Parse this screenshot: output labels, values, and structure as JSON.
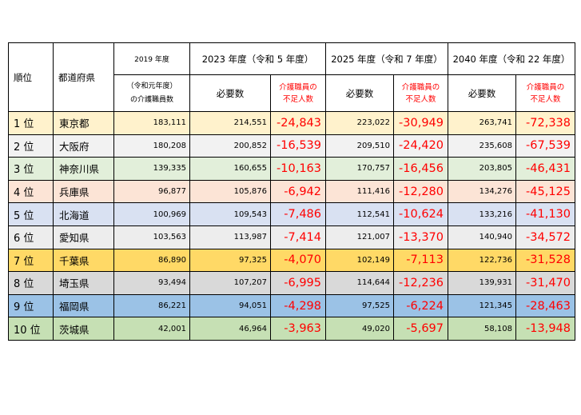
{
  "header": {
    "rank": "順位",
    "prefecture": "都道府県",
    "year2019": "2019 年度",
    "year2019_sub1": "（令和元年度）",
    "year2019_sub2": "の介護職員数",
    "year2023": "2023 年度（令和 5 年度）",
    "year2025": "2025 年度（令和 7 年度）",
    "year2040": "2040 年度（令和 22 年度）",
    "required": "必要数",
    "shortage1": "介護職員の",
    "shortage2": "不足人数"
  },
  "colors": {
    "row_1": "#fff2cc",
    "row_2": "#f2f2f2",
    "row_3": "#e2efda",
    "row_4": "#fce4d6",
    "row_5": "#d9e1f2",
    "row_6": "#ededed",
    "row_7": "#ffd966",
    "row_8": "#d9d9d9",
    "row_9": "#9bc2e6",
    "row_10": "#c6e0b4",
    "shortage_text": "#ff0000"
  },
  "rows": [
    {
      "rank": "1 位",
      "pref": "東京都",
      "staff2019": "183,111",
      "req2023": "214,551",
      "short2023": "-24,843",
      "req2025": "223,022",
      "short2025": "-30,949",
      "req2040": "263,741",
      "short2040": "-72,338"
    },
    {
      "rank": "2 位",
      "pref": "大阪府",
      "staff2019": "180,208",
      "req2023": "200,852",
      "short2023": "-16,539",
      "req2025": "209,510",
      "short2025": "-24,420",
      "req2040": "235,608",
      "short2040": "-67,539"
    },
    {
      "rank": "3 位",
      "pref": "神奈川県",
      "staff2019": "139,335",
      "req2023": "160,655",
      "short2023": "-10,163",
      "req2025": "170,757",
      "short2025": "-16,456",
      "req2040": "203,805",
      "short2040": "-46,431"
    },
    {
      "rank": "4 位",
      "pref": "兵庫県",
      "staff2019": "96,877",
      "req2023": "105,876",
      "short2023": "-6,942",
      "req2025": "111,416",
      "short2025": "-12,280",
      "req2040": "134,276",
      "short2040": "-45,125"
    },
    {
      "rank": "5 位",
      "pref": "北海道",
      "staff2019": "100,969",
      "req2023": "109,543",
      "short2023": "-7,486",
      "req2025": "112,541",
      "short2025": "-10,624",
      "req2040": "133,216",
      "short2040": "-41,130"
    },
    {
      "rank": "6 位",
      "pref": "愛知県",
      "staff2019": "103,563",
      "req2023": "113,987",
      "short2023": "-7,414",
      "req2025": "121,007",
      "short2025": "-13,370",
      "req2040": "140,940",
      "short2040": "-34,572"
    },
    {
      "rank": "7 位",
      "pref": "千葉県",
      "staff2019": "86,890",
      "req2023": "97,325",
      "short2023": "-4,070",
      "req2025": "102,149",
      "short2025": "-7,113",
      "req2040": "122,736",
      "short2040": "-31,528"
    },
    {
      "rank": "8 位",
      "pref": "埼玉県",
      "staff2019": "93,494",
      "req2023": "107,207",
      "short2023": "-6,995",
      "req2025": "114,644",
      "short2025": "-12,236",
      "req2040": "139,931",
      "short2040": "-31,470"
    },
    {
      "rank": "9 位",
      "pref": "福岡県",
      "staff2019": "86,221",
      "req2023": "94,051",
      "short2023": "-4,298",
      "req2025": "97,525",
      "short2025": "-6,224",
      "req2040": "121,345",
      "short2040": "-28,463"
    },
    {
      "rank": "10 位",
      "pref": "茨城県",
      "staff2019": "42,001",
      "req2023": "46,964",
      "short2023": "-3,963",
      "req2025": "49,020",
      "short2025": "-5,697",
      "req2040": "58,108",
      "short2040": "-13,948"
    }
  ]
}
